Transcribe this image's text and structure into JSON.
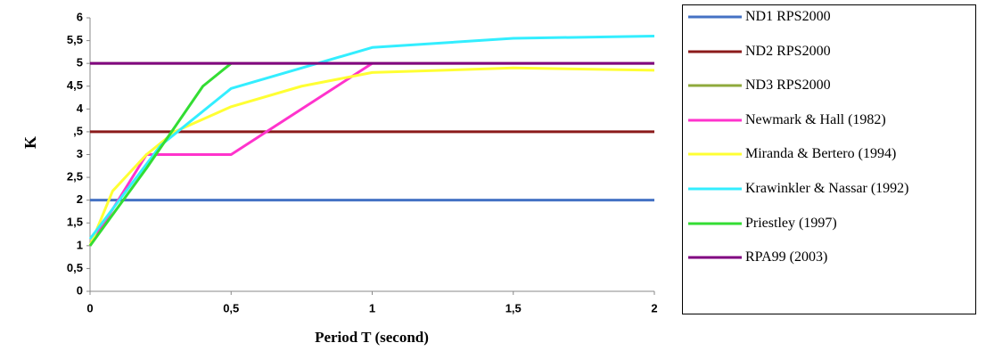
{
  "chart_data": {
    "type": "line",
    "x_label": "Period T (second)",
    "y_label": "K",
    "xlim": [
      0,
      2
    ],
    "xticks": [
      0,
      {
        "value": 0.5,
        "label": "0,5"
      },
      1,
      {
        "value": 1.5,
        "label": "1,5"
      },
      2
    ],
    "ylim": [
      0,
      6
    ],
    "yticks": [
      0,
      {
        "value": 0.5,
        "label": "0,5"
      },
      1,
      {
        "value": 1.5,
        "label": "1,5"
      },
      2,
      {
        "value": 2.5,
        "label": "2,5"
      },
      3,
      {
        "value": 3.5,
        "label": ",5"
      },
      4,
      {
        "value": 4.5,
        "label": "4,5"
      },
      5,
      {
        "value": 5.5,
        "label": "5,5"
      },
      6
    ],
    "grid": false,
    "legend": "right",
    "series": [
      {
        "name": "ND1  RPS2000",
        "color": "#4472c4",
        "x": [
          0,
          2
        ],
        "values": [
          2,
          2
        ]
      },
      {
        "name": "ND2 RPS2000",
        "color": "#8b1a1a",
        "x": [
          0,
          2
        ],
        "values": [
          3.5,
          3.5
        ]
      },
      {
        "name": "ND3 RPS2000",
        "color": "#8faa3c",
        "x": [
          0,
          2
        ],
        "values": [
          5,
          5
        ]
      },
      {
        "name": "Newmark & Hall (1982)",
        "color": "#ff33cc",
        "x": [
          0,
          0.2,
          0.5,
          1
        ],
        "values": [
          1,
          3,
          3,
          5
        ]
      },
      {
        "name": "Miranda & Bertero (1994)",
        "color": "#ffff33",
        "x": [
          0,
          0.08,
          0.2,
          0.3,
          0.5,
          0.75,
          1,
          1.5,
          2
        ],
        "values": [
          1,
          2.2,
          3,
          3.5,
          4.05,
          4.5,
          4.8,
          4.9,
          4.85
        ]
      },
      {
        "name": "Krawinkler & Nassar (1992)",
        "color": "#33eeff",
        "x": [
          0,
          0.25,
          0.5,
          0.75,
          1,
          1.5,
          2
        ],
        "values": [
          1.15,
          3.2,
          4.45,
          4.9,
          5.35,
          5.55,
          5.6
        ]
      },
      {
        "name": "Priestley (1997)",
        "color": "#33dd33",
        "x": [
          0,
          0.2,
          0.4,
          0.5
        ],
        "values": [
          1,
          2.7,
          4.5,
          5
        ]
      },
      {
        "name": "RPA99 (2003)",
        "color": "#800080",
        "x": [
          0,
          2
        ],
        "values": [
          5,
          5
        ]
      }
    ]
  }
}
